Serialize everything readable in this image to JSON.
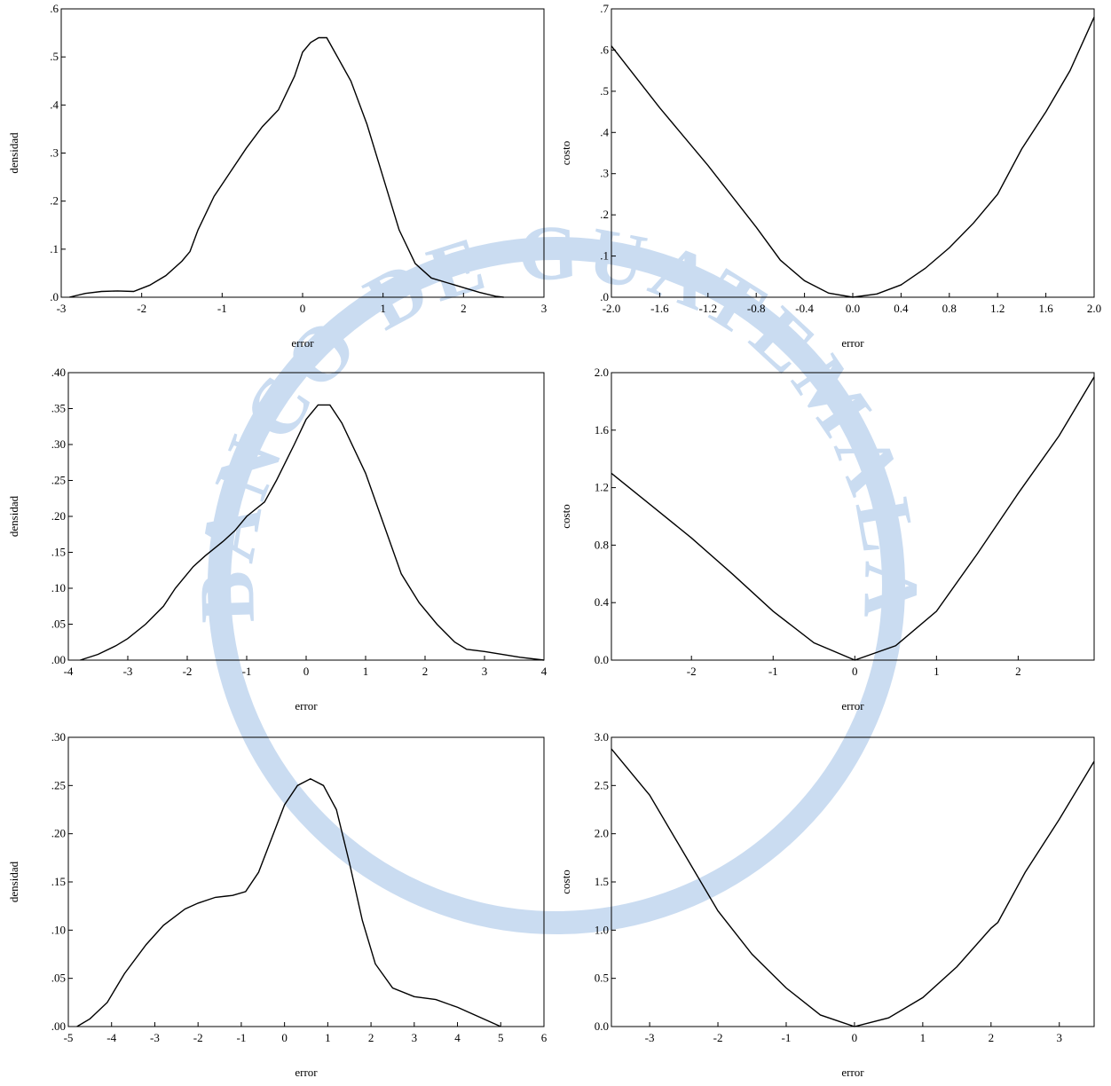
{
  "watermark": {
    "text": "BANCO DE GUATEMALA"
  },
  "chart_data": [
    {
      "type": "line",
      "x_label": "error",
      "y_label": "densidad",
      "color": "#000000",
      "xlim": [
        -3,
        3
      ],
      "ylim": [
        0,
        0.6
      ],
      "xticks": [
        -3,
        -2,
        -1,
        0,
        1,
        2,
        3
      ],
      "yticks": [
        {
          "value": 0,
          "label": ".0"
        },
        {
          "value": 0.1,
          "label": ".1"
        },
        {
          "value": 0.2,
          "label": ".2"
        },
        {
          "value": 0.3,
          "label": ".3"
        },
        {
          "value": 0.4,
          "label": ".4"
        },
        {
          "value": 0.5,
          "label": ".5"
        },
        {
          "value": 0.6,
          "label": ".6"
        }
      ],
      "x": [
        -2.9,
        -2.7,
        -2.5,
        -2.3,
        -2.1,
        -1.9,
        -1.7,
        -1.5,
        -1.4,
        -1.3,
        -1.1,
        -0.9,
        -0.7,
        -0.5,
        -0.3,
        -0.1,
        0.0,
        0.1,
        0.2,
        0.3,
        0.4,
        0.5,
        0.6,
        0.8,
        1.0,
        1.2,
        1.4,
        1.6,
        1.8,
        2.0,
        2.2,
        2.4,
        2.5
      ],
      "values": [
        0,
        0.008,
        0.012,
        0.013,
        0.012,
        0.025,
        0.045,
        0.075,
        0.095,
        0.14,
        0.21,
        0.26,
        0.31,
        0.355,
        0.39,
        0.46,
        0.51,
        0.53,
        0.54,
        0.54,
        0.51,
        0.48,
        0.45,
        0.36,
        0.25,
        0.14,
        0.07,
        0.04,
        0.03,
        0.02,
        0.01,
        0.002,
        0
      ]
    },
    {
      "type": "line",
      "x_label": "error",
      "y_label": "costo",
      "color": "#000000",
      "xlim": [
        -2,
        2
      ],
      "ylim": [
        0,
        0.7
      ],
      "xticks": [
        {
          "value": -2,
          "label": "-2.0"
        },
        -1.6,
        -1.2,
        -0.8,
        -0.4,
        {
          "value": 0,
          "label": "0.0"
        },
        0.4,
        0.8,
        1.2,
        1.6,
        {
          "value": 2,
          "label": "2.0"
        }
      ],
      "yticks": [
        {
          "value": 0,
          "label": ".0"
        },
        {
          "value": 0.1,
          "label": ".1"
        },
        {
          "value": 0.2,
          "label": ".2"
        },
        {
          "value": 0.3,
          "label": ".3"
        },
        {
          "value": 0.4,
          "label": ".4"
        },
        {
          "value": 0.5,
          "label": ".5"
        },
        {
          "value": 0.6,
          "label": ".6"
        },
        {
          "value": 0.7,
          "label": ".7"
        }
      ],
      "x": [
        -2.0,
        -1.6,
        -1.2,
        -0.8,
        -0.6,
        -0.4,
        -0.2,
        0.0,
        0.2,
        0.4,
        0.6,
        0.8,
        1.0,
        1.2,
        1.4,
        1.6,
        1.8,
        2.0
      ],
      "values": [
        0.61,
        0.46,
        0.32,
        0.17,
        0.09,
        0.04,
        0.01,
        0,
        0.008,
        0.03,
        0.07,
        0.12,
        0.18,
        0.25,
        0.36,
        0.45,
        0.55,
        0.68
      ]
    },
    {
      "type": "line",
      "x_label": "error",
      "y_label": "densidad",
      "color": "#000000",
      "xlim": [
        -4,
        4
      ],
      "ylim": [
        0,
        0.4
      ],
      "xticks": [
        -4,
        -3,
        -2,
        -1,
        0,
        1,
        2,
        3,
        4
      ],
      "yticks": [
        {
          "value": 0,
          "label": ".00"
        },
        {
          "value": 0.05,
          "label": ".05"
        },
        {
          "value": 0.1,
          "label": ".10"
        },
        {
          "value": 0.15,
          "label": ".15"
        },
        {
          "value": 0.2,
          "label": ".20"
        },
        {
          "value": 0.25,
          "label": ".25"
        },
        {
          "value": 0.3,
          "label": ".30"
        },
        {
          "value": 0.35,
          "label": ".35"
        },
        {
          "value": 0.4,
          "label": ".40"
        }
      ],
      "x": [
        -3.8,
        -3.5,
        -3.2,
        -3.0,
        -2.7,
        -2.4,
        -2.2,
        -1.9,
        -1.7,
        -1.4,
        -1.2,
        -1.0,
        -0.7,
        -0.5,
        -0.2,
        0.0,
        0.2,
        0.4,
        0.6,
        0.8,
        1.0,
        1.3,
        1.6,
        1.9,
        2.2,
        2.5,
        2.7,
        3.0,
        3.3,
        3.6,
        4.0
      ],
      "values": [
        0,
        0.008,
        0.02,
        0.03,
        0.05,
        0.075,
        0.1,
        0.13,
        0.145,
        0.165,
        0.18,
        0.2,
        0.22,
        0.25,
        0.3,
        0.335,
        0.355,
        0.355,
        0.33,
        0.295,
        0.26,
        0.19,
        0.12,
        0.08,
        0.05,
        0.025,
        0.015,
        0.012,
        0.008,
        0.004,
        0
      ]
    },
    {
      "type": "line",
      "x_label": "error",
      "y_label": "costo",
      "color": "#000000",
      "xlim": [
        -2.98,
        2.93
      ],
      "ylim": [
        0,
        2.0
      ],
      "xticks": [
        -2,
        -1,
        0,
        1,
        2
      ],
      "yticks": [
        {
          "value": 0,
          "label": "0.0"
        },
        0.4,
        0.8,
        1.2,
        1.6,
        {
          "value": 2,
          "label": "2.0"
        }
      ],
      "x": [
        -2.98,
        -2.5,
        -2.0,
        -1.5,
        -1.0,
        -0.5,
        0.0,
        0.5,
        1.0,
        1.5,
        2.0,
        2.5,
        2.93
      ],
      "values": [
        1.3,
        1.08,
        0.85,
        0.6,
        0.34,
        0.12,
        0,
        0.1,
        0.34,
        0.74,
        1.16,
        1.56,
        1.97
      ]
    },
    {
      "type": "line",
      "x_label": "error",
      "y_label": "densidad",
      "color": "#000000",
      "xlim": [
        -5,
        6
      ],
      "ylim": [
        0,
        0.3
      ],
      "xticks": [
        -5,
        -4,
        -3,
        -2,
        -1,
        0,
        1,
        2,
        3,
        4,
        5,
        6
      ],
      "yticks": [
        {
          "value": 0,
          "label": ".00"
        },
        {
          "value": 0.05,
          "label": ".05"
        },
        {
          "value": 0.1,
          "label": ".10"
        },
        {
          "value": 0.15,
          "label": ".15"
        },
        {
          "value": 0.2,
          "label": ".20"
        },
        {
          "value": 0.25,
          "label": ".25"
        },
        {
          "value": 0.3,
          "label": ".30"
        }
      ],
      "x": [
        -4.8,
        -4.5,
        -4.1,
        -3.7,
        -3.2,
        -2.8,
        -2.3,
        -2.0,
        -1.6,
        -1.2,
        -0.9,
        -0.6,
        -0.3,
        0.0,
        0.3,
        0.6,
        0.9,
        1.2,
        1.5,
        1.8,
        2.1,
        2.5,
        3.0,
        3.5,
        4.0,
        4.5,
        5.0
      ],
      "values": [
        0,
        0.008,
        0.025,
        0.055,
        0.085,
        0.105,
        0.122,
        0.128,
        0.134,
        0.136,
        0.14,
        0.16,
        0.195,
        0.23,
        0.25,
        0.257,
        0.25,
        0.225,
        0.17,
        0.11,
        0.065,
        0.04,
        0.031,
        0.028,
        0.02,
        0.01,
        0
      ]
    },
    {
      "type": "line",
      "x_label": "error",
      "y_label": "costo",
      "color": "#000000",
      "xlim": [
        -3.56,
        3.51
      ],
      "ylim": [
        0,
        3.0
      ],
      "xticks": [
        -3,
        -2,
        -1,
        0,
        1,
        2,
        3
      ],
      "yticks": [
        {
          "value": 0,
          "label": "0.0"
        },
        0.5,
        {
          "value": 1,
          "label": "1.0"
        },
        1.5,
        {
          "value": 2,
          "label": "2.0"
        },
        2.5,
        {
          "value": 3,
          "label": "3.0"
        }
      ],
      "x": [
        -3.56,
        -3.0,
        -2.5,
        -2.0,
        -1.5,
        -1.0,
        -0.5,
        0.0,
        0.5,
        1.0,
        1.5,
        2.0,
        2.1,
        2.5,
        3.0,
        3.51
      ],
      "values": [
        2.88,
        2.4,
        1.8,
        1.2,
        0.75,
        0.4,
        0.12,
        0,
        0.09,
        0.3,
        0.62,
        1.02,
        1.08,
        1.6,
        2.15,
        2.75
      ]
    }
  ]
}
